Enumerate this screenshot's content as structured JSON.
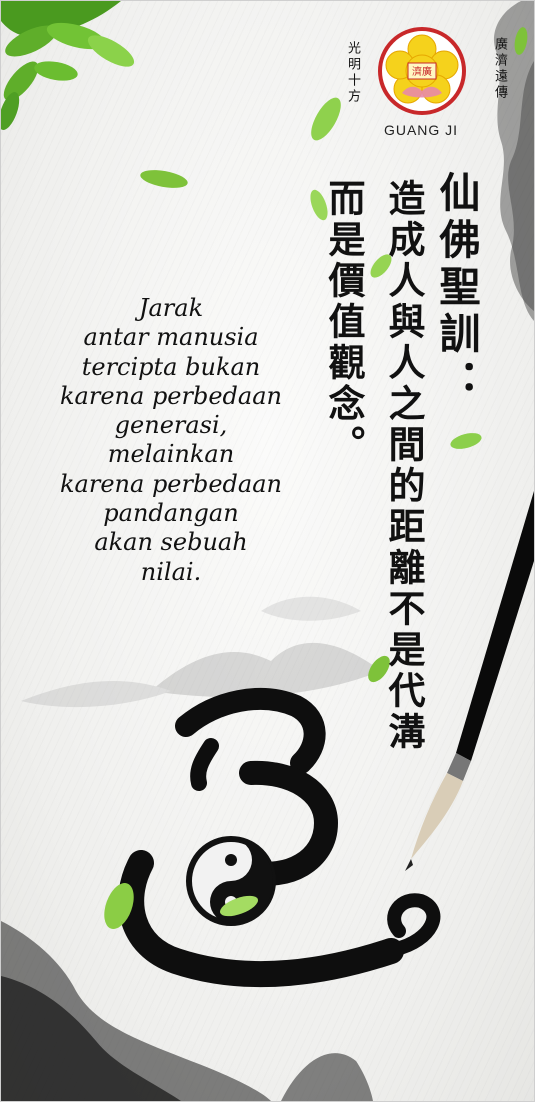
{
  "logo": {
    "caption": "GUANG JI",
    "badge_text": "濟廣",
    "left_text": "光明十方",
    "right_text": "廣濟遠傳"
  },
  "chinese": {
    "title": "仙佛聖訓：",
    "column_1": "造成人與人之間的距離不是代溝",
    "column_2": "而是價值觀念。"
  },
  "indonesian_lines": [
    "Jarak",
    "antar manusia",
    "tercipta bukan",
    "karena perbedaan",
    "generasi,",
    "melainkan",
    "karena perbedaan",
    "pandangan",
    "akan sebuah",
    "nilai."
  ],
  "colors": {
    "ink": "#111111",
    "logo_red": "#c8282a",
    "logo_yellow": "#f5d21c",
    "leaf_green": "#6fbf2f"
  }
}
